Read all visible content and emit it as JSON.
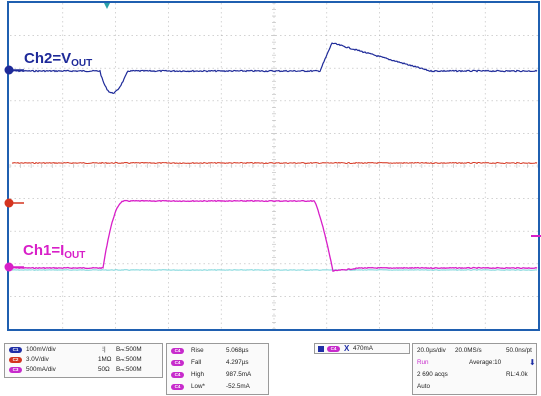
{
  "traces": {
    "ch2_label": {
      "prefix": "Ch2=V",
      "sub": "OUT",
      "color": "#1e2a99"
    },
    "ch1_label": {
      "prefix": "Ch1=I",
      "sub": "OUT",
      "color": "#d81fc8"
    },
    "colors": {
      "ch1": "#d81fc8",
      "ch2": "#1e2a99",
      "ch3": "#d4341f",
      "ref": "#79d4d9",
      "grid": "#b8b8b8",
      "border": "#1f5fb0"
    }
  },
  "channels": [
    {
      "badge": "C1",
      "scale": "100mV/div",
      "coupling": "⁝|",
      "bw": "Bₘ:500M",
      "color": "#1f2fa6"
    },
    {
      "badge": "C2",
      "scale": "3.0V/div",
      "coupling": "1MΩ",
      "bw": "Bₘ:500M",
      "color": "#d4341f"
    },
    {
      "badge": "C3",
      "scale": "500mA/div",
      "coupling": "50Ω",
      "bw": "Bₘ:500M",
      "color": "#c72bcc"
    }
  ],
  "measurements": [
    {
      "badge": "C4",
      "name": "Rise",
      "value": "5.068µs"
    },
    {
      "badge": "C4",
      "name": "Fall",
      "value": "4.297µs"
    },
    {
      "badge": "C4",
      "name": "High",
      "value": "987.5mA"
    },
    {
      "badge": "C4",
      "name": "Low*",
      "value": "-52.5mA"
    }
  ],
  "cursor": {
    "badge": "C4",
    "symbol": "X",
    "value": "470mA"
  },
  "timebase": {
    "horizontal": "20.0µs/div",
    "sample_rate": "20.0MS/s",
    "resolution": "50.0ns/pt",
    "state": "Run",
    "averaging": "Average:10",
    "acqs": "2 690 acqs",
    "record_length": "RL:4.0k",
    "mode": "Auto"
  }
}
